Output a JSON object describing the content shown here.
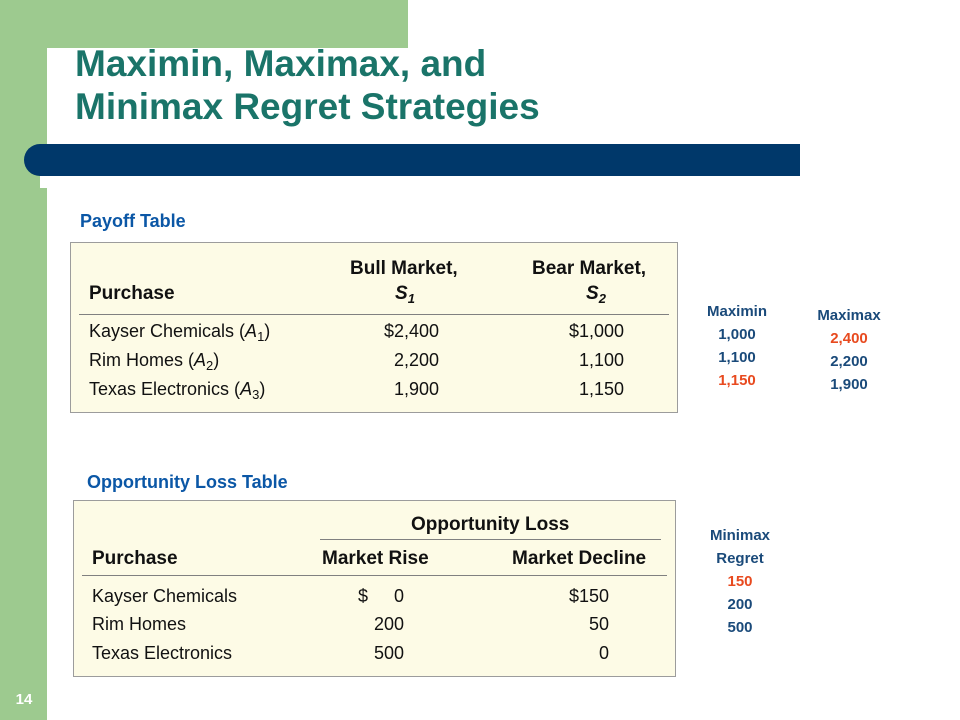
{
  "slide": {
    "title_line1": "Maximin, Maximax, and",
    "title_line2": "Minimax Regret Strategies",
    "page_number": "14"
  },
  "payoff": {
    "label": "Payoff Table",
    "header": {
      "purchase": "Purchase",
      "bull": "Bull Market,",
      "bull_sym": "S",
      "bull_sub": "1",
      "bear": "Bear Market,",
      "bear_sym": "S",
      "bear_sub": "2"
    },
    "rows": [
      {
        "name": "Kayser Chemicals (",
        "alt": "A",
        "alt_sub": "1",
        "close": ")",
        "bull": "$2,400",
        "bear": "$1,000"
      },
      {
        "name": "Rim Homes (",
        "alt": "A",
        "alt_sub": "2",
        "close": ")",
        "bull": "2,200",
        "bear": "1,100"
      },
      {
        "name": "Texas Electronics (",
        "alt": "A",
        "alt_sub": "3",
        "close": ")",
        "bull": "1,900",
        "bear": "1,150"
      }
    ]
  },
  "maximin": {
    "heading": "Maximin",
    "values": [
      "1,000",
      "1,100",
      "1,150"
    ],
    "highlight_index": 2
  },
  "maximax": {
    "heading": "Maximax",
    "values": [
      "2,400",
      "2,200",
      "1,900"
    ],
    "highlight_index": 0
  },
  "loss": {
    "label": "Opportunity Loss Table",
    "header": {
      "group": "Opportunity Loss",
      "purchase": "Purchase",
      "rise": "Market Rise",
      "decline": "Market Decline"
    },
    "rows": [
      {
        "name": "Kayser Chemicals",
        "rise_prefix": "$",
        "rise": "0",
        "decline": "$150"
      },
      {
        "name": "Rim Homes",
        "rise_prefix": "",
        "rise": "200",
        "decline": "50"
      },
      {
        "name": "Texas Electronics",
        "rise_prefix": "",
        "rise": "500",
        "decline": "0"
      }
    ]
  },
  "minimax_regret": {
    "heading_line1": "Minimax",
    "heading_line2": "Regret",
    "values": [
      "150",
      "200",
      "500"
    ],
    "highlight_index": 0
  },
  "colors": {
    "title": "#1a7469",
    "accent_bar": "#00386a",
    "sidebar": "#9dca8f",
    "highlight": "#e84a1f",
    "value_text": "#1a4a7a"
  }
}
